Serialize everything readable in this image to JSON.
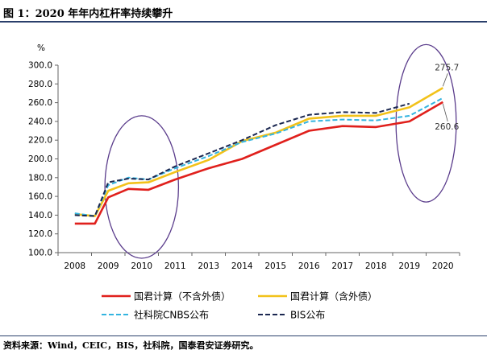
{
  "figure": {
    "title": "图 1：2020 年年内杠杆率持续攀升",
    "source": "资料来源：Wind，CEIC，BIS，社科院，国泰君安证券研究。"
  },
  "chart_data": {
    "type": "line",
    "title": "",
    "xlabel": "",
    "ylabel": "%",
    "x": [
      "2008",
      "2009",
      "2010",
      "2011",
      "2013",
      "2014",
      "2015",
      "2016",
      "2017",
      "2018",
      "2019",
      "2020"
    ],
    "ylim": [
      100,
      300
    ],
    "yticks": [
      "100.0",
      "120.0",
      "140.0",
      "160.0",
      "180.0",
      "200.0",
      "220.0",
      "240.0",
      "260.0",
      "280.0",
      "300.0"
    ],
    "grid": false,
    "legend_position": "bottom",
    "series": [
      {
        "name": "国君计算（不含外债）",
        "color": "#e0201c",
        "dash": "solid",
        "points": [
          [
            0,
            131
          ],
          [
            0.6,
            131
          ],
          [
            1.0,
            159
          ],
          [
            1.6,
            168
          ],
          [
            2.2,
            167
          ],
          [
            3.0,
            178
          ],
          [
            4.0,
            190
          ],
          [
            5.0,
            200
          ],
          [
            6.0,
            215
          ],
          [
            7.0,
            230
          ],
          [
            8.0,
            235
          ],
          [
            9.0,
            234
          ],
          [
            10.0,
            240
          ],
          [
            11.0,
            260.6
          ]
        ]
      },
      {
        "name": "国君计算（含外债）",
        "color": "#f2c21a",
        "dash": "solid",
        "points": [
          [
            0,
            141
          ],
          [
            0.6,
            139
          ],
          [
            1.0,
            166
          ],
          [
            1.6,
            174
          ],
          [
            2.2,
            175
          ],
          [
            3.0,
            186
          ],
          [
            4.0,
            199
          ],
          [
            5.0,
            219
          ],
          [
            6.0,
            228
          ],
          [
            7.0,
            243
          ],
          [
            8.0,
            246
          ],
          [
            9.0,
            246
          ],
          [
            10.0,
            255
          ],
          [
            11.0,
            275.7
          ]
        ]
      },
      {
        "name": "社科院CNBS公布",
        "color": "#33b4e0",
        "dash": "dash",
        "points": [
          [
            0,
            142
          ],
          [
            0.6,
            139
          ],
          [
            1.0,
            172
          ],
          [
            1.6,
            180
          ],
          [
            2.2,
            178
          ],
          [
            3.0,
            190
          ],
          [
            4.0,
            203
          ],
          [
            5.0,
            218
          ],
          [
            6.0,
            227
          ],
          [
            7.0,
            240
          ],
          [
            8.0,
            242
          ],
          [
            9.0,
            241
          ],
          [
            10.0,
            246
          ],
          [
            11.0,
            265
          ]
        ]
      },
      {
        "name": "BIS公布",
        "color": "#1b2750",
        "dash": "dash",
        "points": [
          [
            0,
            140
          ],
          [
            0.6,
            139
          ],
          [
            1.0,
            175
          ],
          [
            1.6,
            179
          ],
          [
            2.2,
            178
          ],
          [
            3.0,
            192
          ],
          [
            4.0,
            206
          ],
          [
            5.0,
            220
          ],
          [
            6.0,
            236
          ],
          [
            7.0,
            247
          ],
          [
            8.0,
            250
          ],
          [
            9.0,
            249
          ],
          [
            10.0,
            259
          ]
        ]
      }
    ],
    "annotations": [
      {
        "text": "275.7",
        "series": "国君计算（含外债）",
        "x": 11.0,
        "y": 275.7
      },
      {
        "text": "260.6",
        "series": "国君计算（不含外债）",
        "x": 11.0,
        "y": 260.6
      }
    ],
    "highlight_ellipses": [
      {
        "label": "2009-2010",
        "x_center": 2.0,
        "y_center": 170
      },
      {
        "label": "2019-2020",
        "x_center": 10.5,
        "y_center": 238
      }
    ],
    "highlight_color": "#5b3d8c"
  }
}
